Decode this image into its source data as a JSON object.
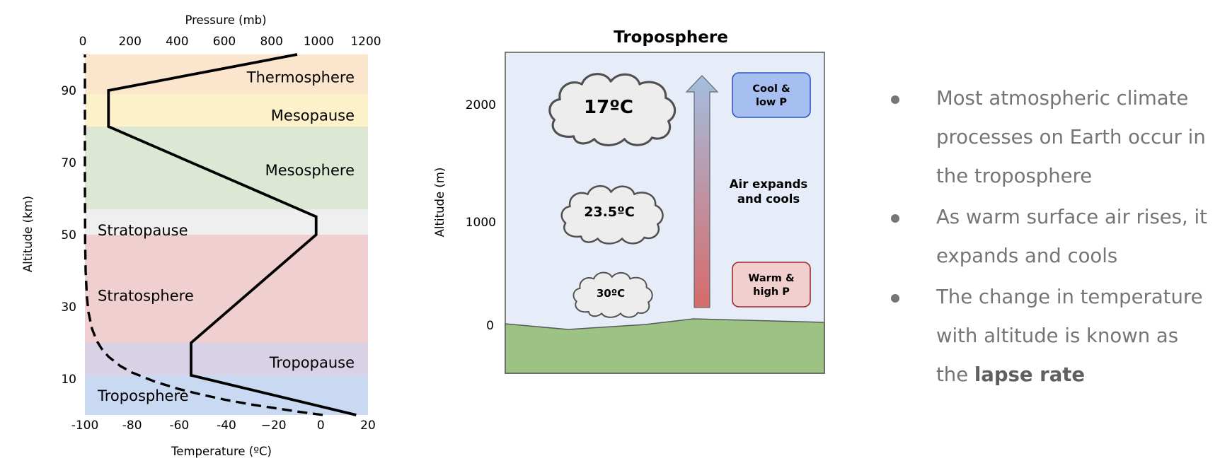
{
  "atmosphere_chart": {
    "pressure_title": "Pressure (mb)",
    "pressure_ticks": [
      "0",
      "200",
      "400",
      "600",
      "800",
      "1000",
      "1200"
    ],
    "altitude_title": "Altitude (km)",
    "altitude_ticks": [
      "10",
      "30",
      "50",
      "70",
      "90"
    ],
    "temperature_title": "Temperature (ºC)",
    "temperature_ticks": [
      "-100",
      "-80",
      "-60",
      "-40",
      "−20",
      "0",
      "20"
    ],
    "layers": [
      {
        "label": "Troposphere",
        "color": "#c9d9f2"
      },
      {
        "label": "Tropopause",
        "color": "#d9d2e6"
      },
      {
        "label": "Stratosphere",
        "color": "#efcfcf"
      },
      {
        "label": "Stratopause",
        "color": "#efefef"
      },
      {
        "label": "Mesosphere",
        "color": "#dce8d4"
      },
      {
        "label": "Mesopause",
        "color": "#fdf1c9"
      },
      {
        "label": "Thermosphere",
        "color": "#fbe5cd"
      }
    ],
    "temperature_profile": [
      [
        15,
        0
      ],
      [
        -55,
        11
      ],
      [
        -55,
        20
      ],
      [
        -2,
        50
      ],
      [
        -2,
        55
      ],
      [
        -90,
        80
      ],
      [
        -90,
        90
      ],
      [
        -10,
        100
      ]
    ],
    "pressure_profile": [
      [
        1013,
        0
      ],
      [
        900,
        1
      ],
      [
        800,
        2
      ],
      [
        700,
        3
      ],
      [
        600,
        4.2
      ],
      [
        500,
        5.6
      ],
      [
        400,
        7.2
      ],
      [
        300,
        9.2
      ],
      [
        200,
        11.8
      ],
      [
        150,
        13.6
      ],
      [
        100,
        16.2
      ],
      [
        70,
        18.5
      ],
      [
        50,
        20.6
      ],
      [
        30,
        24
      ],
      [
        15,
        28.5
      ],
      [
        8,
        33
      ],
      [
        3,
        40
      ],
      [
        1,
        48
      ],
      [
        0.5,
        55
      ],
      [
        0,
        65
      ],
      [
        0,
        100
      ]
    ]
  },
  "troposphere_diagram": {
    "title": "Troposphere",
    "altitude_title": "Altitude (m)",
    "altitude_ticks": [
      "2000",
      "1000",
      "0"
    ],
    "clouds": [
      "17ºC",
      "23.5ºC",
      "30ºC"
    ],
    "arrow_label": [
      "Air expands",
      "and cools"
    ],
    "top_box": [
      "Cool &",
      "low P"
    ],
    "bottom_box": [
      "Warm &",
      "high P"
    ]
  },
  "bullets": [
    {
      "text": "Most atmospheric climate processes on Earth occur in the troposphere"
    },
    {
      "text": "As warm surface air rises, it expands and cools"
    },
    {
      "text": "The change in temperature with altitude is known as the ",
      "bold": "lapse rate"
    }
  ]
}
